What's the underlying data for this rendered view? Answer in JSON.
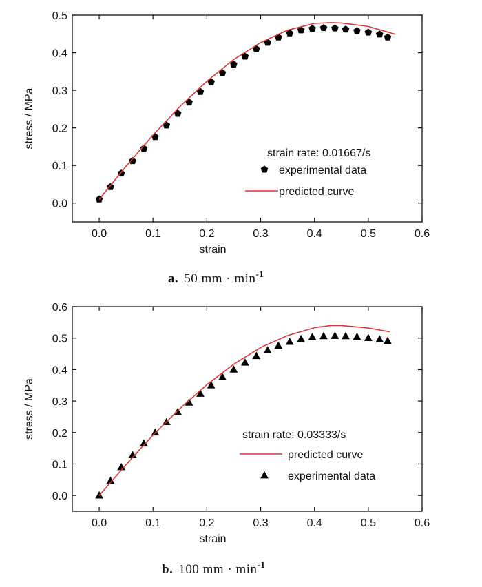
{
  "chart_data": [
    {
      "type": "scatter",
      "xlabel": "strain",
      "ylabel": "stress / MPa",
      "xlim": [
        -0.05,
        0.6
      ],
      "ylim": [
        -0.05,
        0.5
      ],
      "xticks": [
        0.0,
        0.1,
        0.2,
        0.3,
        0.4,
        0.5,
        0.6
      ],
      "yticks": [
        0.0,
        0.1,
        0.2,
        0.3,
        0.4,
        0.5
      ],
      "xtick_labels": [
        "0.0",
        "0.1",
        "0.2",
        "0.3",
        "0.4",
        "0.5",
        "0.6"
      ],
      "ytick_labels": [
        "0.0",
        "0.1",
        "0.2",
        "0.3",
        "0.4",
        "0.5"
      ],
      "annotation": "strain rate: 0.01667/s",
      "caption": {
        "letter": "a.",
        "text": "50 mm · min",
        "superscript": "-1"
      },
      "legend": {
        "placement": "lower-right",
        "entries": [
          {
            "label": "experimental data",
            "marker": "pentagon"
          },
          {
            "label": "predicted curve",
            "marker": "line"
          }
        ]
      },
      "series": [
        {
          "name": "experimental data",
          "kind": "points",
          "marker": "pentagon",
          "color": "#000000",
          "x": [
            0.0,
            0.021,
            0.041,
            0.062,
            0.083,
            0.104,
            0.125,
            0.146,
            0.167,
            0.188,
            0.208,
            0.229,
            0.25,
            0.271,
            0.292,
            0.313,
            0.333,
            0.354,
            0.375,
            0.396,
            0.417,
            0.438,
            0.458,
            0.479,
            0.5,
            0.521,
            0.536
          ],
          "y": [
            0.01,
            0.043,
            0.079,
            0.112,
            0.145,
            0.176,
            0.207,
            0.238,
            0.268,
            0.296,
            0.322,
            0.346,
            0.369,
            0.39,
            0.41,
            0.427,
            0.441,
            0.452,
            0.46,
            0.464,
            0.466,
            0.465,
            0.462,
            0.458,
            0.454,
            0.449,
            0.441
          ]
        },
        {
          "name": "predicted curve",
          "kind": "line",
          "color": "#d8383a",
          "x": [
            0.0,
            0.05,
            0.1,
            0.15,
            0.2,
            0.25,
            0.3,
            0.35,
            0.4,
            0.43,
            0.45,
            0.5,
            0.55
          ],
          "y": [
            0.01,
            0.098,
            0.181,
            0.257,
            0.324,
            0.382,
            0.427,
            0.46,
            0.478,
            0.48,
            0.479,
            0.47,
            0.449
          ]
        }
      ]
    },
    {
      "type": "scatter",
      "xlabel": "strain",
      "ylabel": "stress / MPa",
      "xlim": [
        -0.05,
        0.6
      ],
      "ylim": [
        -0.05,
        0.6
      ],
      "xticks": [
        0.0,
        0.1,
        0.2,
        0.3,
        0.4,
        0.5,
        0.6
      ],
      "yticks": [
        0.0,
        0.1,
        0.2,
        0.3,
        0.4,
        0.5,
        0.6
      ],
      "xtick_labels": [
        "0.0",
        "0.1",
        "0.2",
        "0.3",
        "0.4",
        "0.5",
        "0.6"
      ],
      "ytick_labels": [
        "0.0",
        "0.1",
        "0.2",
        "0.3",
        "0.4",
        "0.5",
        "0.6"
      ],
      "annotation": "strain rate: 0.03333/s",
      "caption": {
        "letter": "b.",
        "text": "100 mm · min",
        "superscript": "-1"
      },
      "legend": {
        "placement": "lower-right",
        "entries": [
          {
            "label": "predicted curve",
            "marker": "line"
          },
          {
            "label": "experimental data",
            "marker": "triangle"
          }
        ]
      },
      "series": [
        {
          "name": "experimental data",
          "kind": "points",
          "marker": "triangle",
          "color": "#000000",
          "x": [
            0.0,
            0.021,
            0.041,
            0.062,
            0.083,
            0.104,
            0.125,
            0.146,
            0.167,
            0.188,
            0.208,
            0.229,
            0.25,
            0.271,
            0.292,
            0.313,
            0.333,
            0.354,
            0.375,
            0.396,
            0.417,
            0.438,
            0.458,
            0.479,
            0.5,
            0.521,
            0.536
          ],
          "y": [
            0.0,
            0.047,
            0.09,
            0.128,
            0.165,
            0.2,
            0.233,
            0.265,
            0.295,
            0.323,
            0.35,
            0.376,
            0.4,
            0.422,
            0.443,
            0.461,
            0.476,
            0.488,
            0.497,
            0.503,
            0.506,
            0.507,
            0.506,
            0.504,
            0.5,
            0.496,
            0.491
          ]
        },
        {
          "name": "predicted curve",
          "kind": "line",
          "color": "#d8383a",
          "x": [
            0.0,
            0.05,
            0.1,
            0.15,
            0.2,
            0.25,
            0.3,
            0.35,
            0.4,
            0.43,
            0.45,
            0.5,
            0.54
          ],
          "y": [
            0.0,
            0.098,
            0.192,
            0.276,
            0.352,
            0.417,
            0.47,
            0.508,
            0.533,
            0.54,
            0.54,
            0.532,
            0.52
          ]
        }
      ]
    }
  ]
}
